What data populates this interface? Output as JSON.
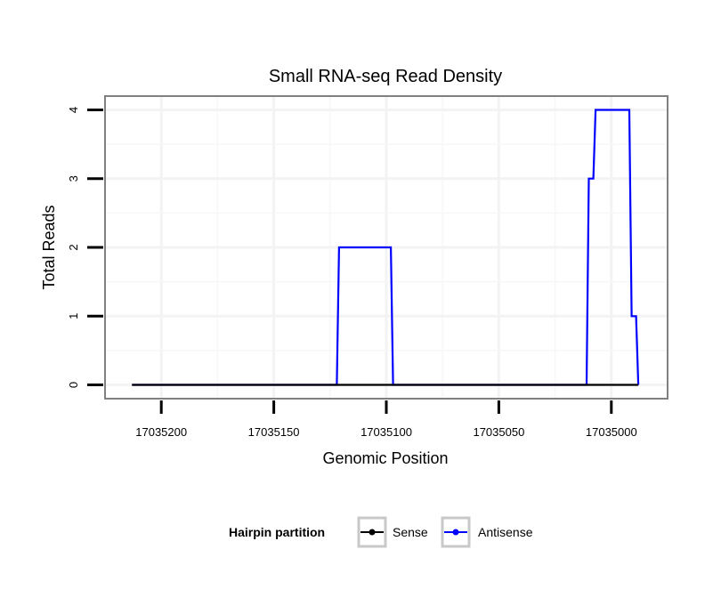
{
  "chart_data": {
    "type": "line",
    "title": "Small RNA-seq Read Density",
    "xlabel": "Genomic Position",
    "ylabel": "Total Reads",
    "x_reversed": true,
    "xlim": [
      17035225,
      17034975
    ],
    "ylim": [
      -0.2,
      4.2
    ],
    "x_ticks": [
      17035200,
      17035150,
      17035100,
      17035050,
      17035000
    ],
    "x_tick_labels": [
      "17035200",
      "17035150",
      "17035100",
      "17035050",
      "17035000"
    ],
    "y_ticks": [
      0,
      1,
      2,
      3,
      4
    ],
    "y_tick_labels": [
      "0",
      "1",
      "2",
      "3",
      "4"
    ],
    "grid": true,
    "legend_position": "bottom",
    "legend_title": "Hairpin partition",
    "series": [
      {
        "name": "Sense",
        "color": "#000000",
        "points": [
          [
            17035213,
            0
          ],
          [
            17034988,
            0
          ]
        ]
      },
      {
        "name": "Antisense",
        "color": "#0000ff",
        "points": [
          [
            17035213,
            0
          ],
          [
            17035122,
            0
          ],
          [
            17035121,
            2
          ],
          [
            17035098,
            2
          ],
          [
            17035097,
            0
          ],
          [
            17035011,
            0
          ],
          [
            17035010,
            3
          ],
          [
            17035008,
            3
          ],
          [
            17035007,
            4
          ],
          [
            17034992,
            4
          ],
          [
            17034991,
            1
          ],
          [
            17034989,
            1
          ],
          [
            17034988,
            0
          ]
        ]
      }
    ]
  }
}
